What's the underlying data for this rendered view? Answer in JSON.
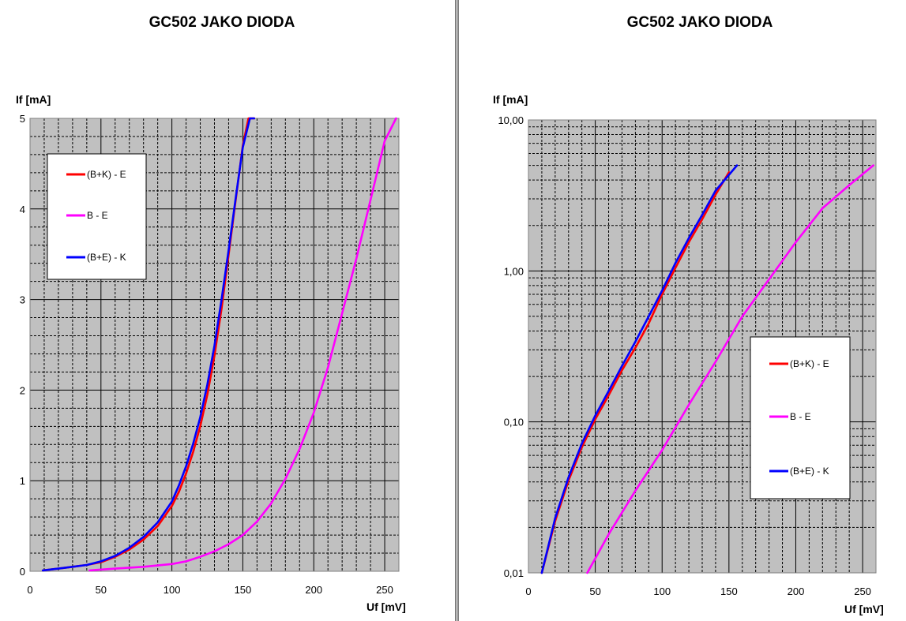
{
  "chart_data": [
    {
      "type": "line",
      "title": "GC502 JAKO DIODA",
      "xlabel": "Uf [mV]",
      "ylabel": "If [mA]",
      "xlim": [
        0,
        260
      ],
      "ylim": [
        0,
        5
      ],
      "yscale": "linear",
      "x_ticks": [
        "0",
        "50",
        "100",
        "150",
        "200",
        "250"
      ],
      "y_ticks": [
        "0",
        "1",
        "2",
        "3",
        "4",
        "5"
      ],
      "grid": true,
      "plot_background": "#c0c0c0",
      "legend_position": "top-left",
      "series": [
        {
          "name": "(B+K) - E",
          "color": "#ff0000",
          "x": [
            9,
            20,
            30,
            40,
            50,
            60,
            70,
            80,
            90,
            100,
            105,
            110,
            115,
            120,
            125,
            130,
            135,
            140,
            145,
            150,
            154,
            158
          ],
          "y": [
            0.01,
            0.03,
            0.05,
            0.07,
            0.1,
            0.16,
            0.24,
            0.35,
            0.5,
            0.72,
            0.88,
            1.08,
            1.32,
            1.6,
            1.95,
            2.38,
            2.9,
            3.5,
            4.1,
            4.7,
            5.0,
            5.0
          ]
        },
        {
          "name": "B - E",
          "color": "#ff00ff",
          "x": [
            42,
            60,
            80,
            100,
            110,
            120,
            130,
            140,
            150,
            160,
            170,
            180,
            190,
            200,
            210,
            220,
            230,
            240,
            250,
            258
          ],
          "y": [
            0.01,
            0.03,
            0.05,
            0.08,
            0.11,
            0.16,
            0.22,
            0.3,
            0.4,
            0.55,
            0.75,
            1.02,
            1.35,
            1.75,
            2.25,
            2.85,
            3.45,
            4.1,
            4.75,
            5.0
          ]
        },
        {
          "name": "(B+E) - K",
          "color": "#0000ff",
          "x": [
            9,
            20,
            30,
            40,
            50,
            60,
            70,
            80,
            90,
            100,
            105,
            110,
            115,
            120,
            125,
            130,
            135,
            140,
            145,
            150,
            155,
            158
          ],
          "y": [
            0.01,
            0.03,
            0.05,
            0.07,
            0.11,
            0.17,
            0.26,
            0.38,
            0.54,
            0.77,
            0.95,
            1.16,
            1.41,
            1.7,
            2.06,
            2.49,
            3.0,
            3.55,
            4.12,
            4.68,
            5.0,
            5.0
          ]
        }
      ]
    },
    {
      "type": "line",
      "title": "GC502 JAKO DIODA",
      "xlabel": "Uf [mV]",
      "ylabel": "If [mA]",
      "xlim": [
        0,
        260
      ],
      "ylim": [
        0.01,
        10
      ],
      "yscale": "log",
      "x_ticks": [
        "0",
        "50",
        "100",
        "150",
        "200",
        "250"
      ],
      "y_ticks": [
        "0,01",
        "0,10",
        "1,00",
        "10,00"
      ],
      "grid": true,
      "plot_background": "#c0c0c0",
      "legend_position": "center-right",
      "series": [
        {
          "name": "(B+K) - E",
          "color": "#ff0000",
          "x": [
            10,
            20,
            30,
            40,
            50,
            60,
            70,
            80,
            90,
            100,
            110,
            120,
            130,
            140,
            150
          ],
          "y": [
            0.01,
            0.022,
            0.041,
            0.068,
            0.104,
            0.15,
            0.22,
            0.31,
            0.45,
            0.7,
            1.05,
            1.55,
            2.2,
            3.2,
            4.5
          ]
        },
        {
          "name": "B - E",
          "color": "#ff00ff",
          "x": [
            44,
            60,
            80,
            100,
            120,
            140,
            160,
            180,
            200,
            220,
            240,
            258
          ],
          "y": [
            0.01,
            0.018,
            0.035,
            0.065,
            0.13,
            0.25,
            0.5,
            0.88,
            1.55,
            2.6,
            3.7,
            5.0
          ]
        },
        {
          "name": "(B+E) - K",
          "color": "#0000ff",
          "x": [
            10,
            20,
            30,
            40,
            50,
            60,
            70,
            80,
            90,
            100,
            110,
            120,
            130,
            140,
            156
          ],
          "y": [
            0.01,
            0.023,
            0.043,
            0.072,
            0.11,
            0.16,
            0.235,
            0.34,
            0.5,
            0.74,
            1.13,
            1.65,
            2.35,
            3.4,
            5.0
          ]
        }
      ]
    }
  ]
}
